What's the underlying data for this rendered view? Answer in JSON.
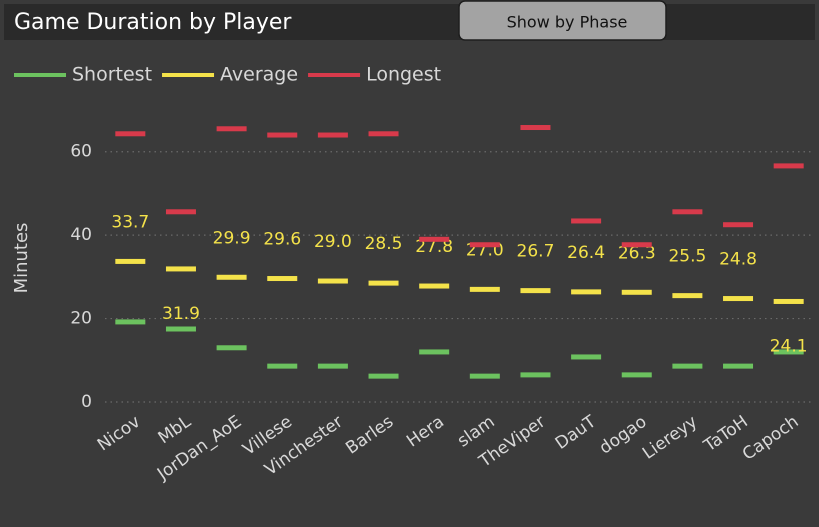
{
  "chart_data": {
    "type": "dash",
    "title": "Game Duration by Player",
    "button": "Show by Phase",
    "y_label": "Minutes",
    "categories": [
      "Nicov",
      "MbL",
      "JorDan_AoE",
      "Villese",
      "Vinchester",
      "Barles",
      "Hera",
      "slam",
      "TheViper",
      "DauT",
      "dogao",
      "Liereyy",
      "TaToH",
      "Capoch"
    ],
    "series": [
      {
        "name": "Shortest",
        "color": "#6cc25f",
        "values": [
          19.2,
          17.5,
          13,
          8.6,
          8.6,
          6.2,
          12,
          6.2,
          6.5,
          10.8,
          6.5,
          8.6,
          8.6,
          12
        ]
      },
      {
        "name": "Average",
        "color": "#f4e24a",
        "values": [
          33.7,
          31.9,
          29.9,
          29.6,
          29.0,
          28.5,
          27.8,
          27.0,
          26.7,
          26.4,
          26.3,
          25.5,
          24.8,
          24.1
        ],
        "value_labels": [
          "33.7",
          "31.9",
          "29.9",
          "29.6",
          "29.0",
          "28.5",
          "27.8",
          "27.0",
          "26.7",
          "26.4",
          "26.3",
          "25.5",
          "24.8",
          "24.1"
        ]
      },
      {
        "name": "Longest",
        "color": "#d83a4b",
        "values": [
          64.3,
          45.6,
          65.5,
          64,
          64,
          64.3,
          39,
          37.7,
          65.8,
          43.4,
          37.7,
          45.6,
          42.5,
          56.6
        ]
      }
    ],
    "ylim": [
      0,
      70
    ],
    "yticks": [
      0,
      20,
      40,
      60
    ],
    "grid": true,
    "legend": "top-left"
  }
}
